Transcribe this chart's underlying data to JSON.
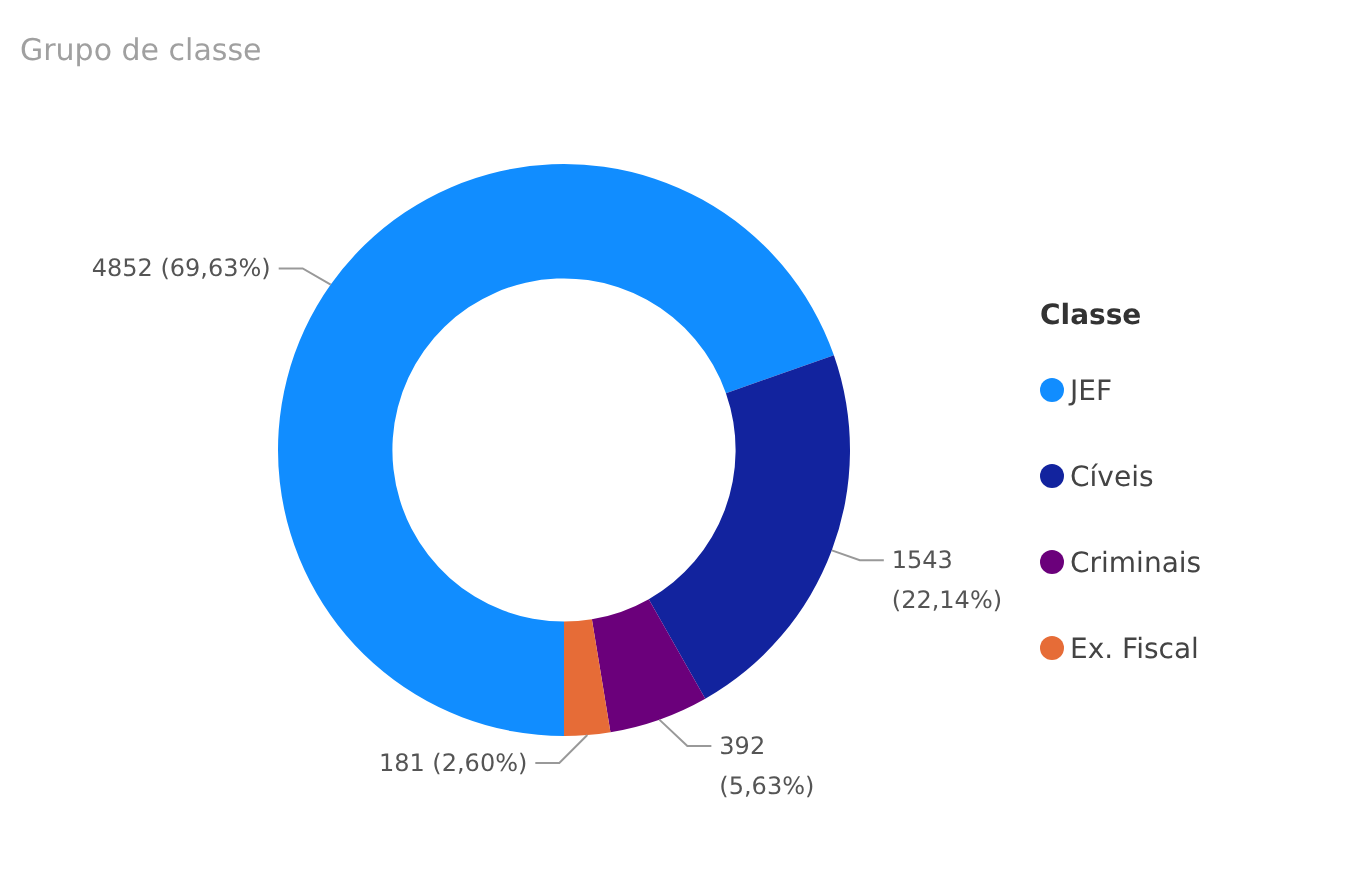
{
  "chart_data": {
    "type": "donut",
    "title": "Grupo de classe",
    "legend_title": "Classe",
    "legend": "right",
    "categories": [
      "JEF",
      "Cíveis",
      "Criminais",
      "Ex. Fiscal"
    ],
    "values": [
      4852,
      1543,
      392,
      181
    ],
    "colors": [
      "#118dff",
      "#12239e",
      "#6b007b",
      "#e66c37"
    ],
    "value_labels": [
      "4852 (69,63%)",
      "1543 (22,14%)",
      "392 (5,63%)",
      "181 (2,60%)"
    ]
  }
}
